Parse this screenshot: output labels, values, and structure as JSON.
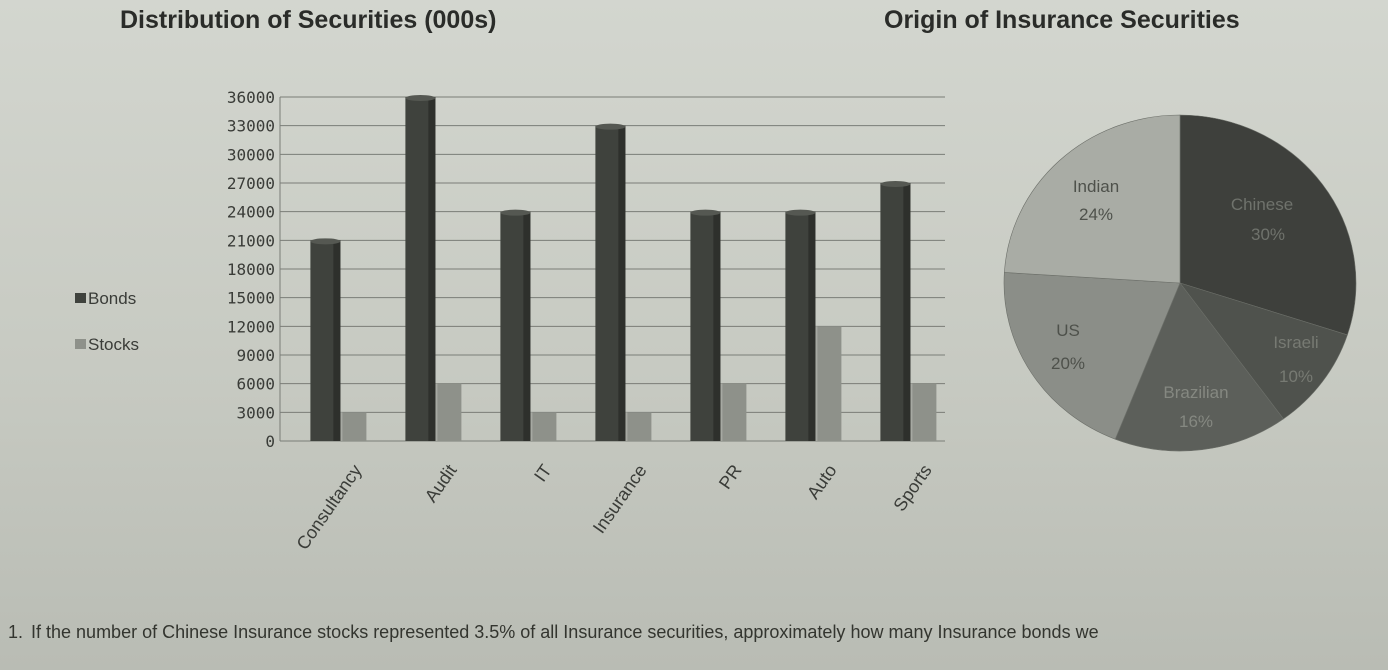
{
  "titles": {
    "bar": "Distribution of Securities (000s)",
    "pie": "Origin of Insurance Securities"
  },
  "question": {
    "number": "1.",
    "text": "If the number of Chinese Insurance stocks represented 3.5% of all Insurance securities, approximately how many Insurance bonds we"
  },
  "colors": {
    "bonds": "#3f423d",
    "stocks": "#8e918a",
    "gridline": "#7a7d77",
    "axis_text": "#3a3c38",
    "pie_chinese": "#3e403c",
    "pie_israeli": "#4f524d",
    "pie_brazilian": "#5c5f5a",
    "pie_us": "#8b8e88",
    "pie_indian": "#a9aca5"
  },
  "chart_data": [
    {
      "type": "bar",
      "title": "Distribution of Securities (000s)",
      "categories": [
        "Consultancy",
        "Audit",
        "IT",
        "Insurance",
        "PR",
        "Auto",
        "Sports"
      ],
      "series": [
        {
          "name": "Bonds",
          "values": [
            21000,
            36000,
            24000,
            33000,
            24000,
            24000,
            27000
          ]
        },
        {
          "name": "Stocks",
          "values": [
            3000,
            6000,
            3000,
            3000,
            6000,
            12000,
            6000
          ]
        }
      ],
      "yticks": [
        "0",
        "3000",
        "6000",
        "9000",
        "12000",
        "15000",
        "18000",
        "21000",
        "24000",
        "27000",
        "30000",
        "33000",
        "36000"
      ],
      "ylim": [
        0,
        36000
      ],
      "grid": true,
      "legend": "left"
    },
    {
      "type": "pie",
      "title": "Origin of Insurance Securities",
      "slices": [
        {
          "label": "Chinese",
          "pct_label": "30%",
          "value": 30
        },
        {
          "label": "Israeli",
          "pct_label": "10%",
          "value": 10
        },
        {
          "label": "Brazilian",
          "pct_label": "16%",
          "value": 16
        },
        {
          "label": "US",
          "pct_label": "20%",
          "value": 20
        },
        {
          "label": "Indian",
          "pct_label": "24%",
          "value": 24
        }
      ]
    }
  ]
}
